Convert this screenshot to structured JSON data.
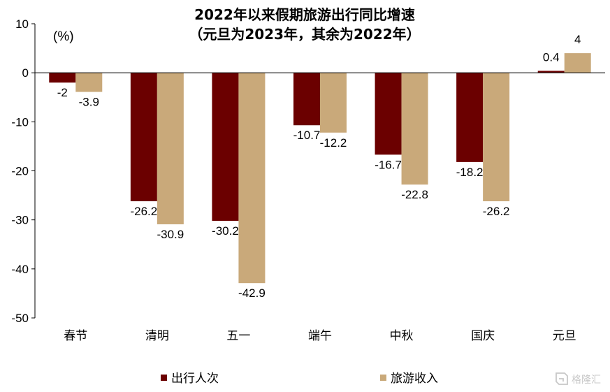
{
  "chart_data": {
    "type": "bar",
    "title": "2022年以来假期旅游出行同比增速",
    "subtitle": "（元旦为2023年，其余为2022年）",
    "unit_label": "(%)",
    "categories": [
      "春节",
      "清明",
      "五一",
      "端午",
      "中秋",
      "国庆",
      "元旦"
    ],
    "series": [
      {
        "name": "出行人次",
        "values": [
          -2,
          -26.2,
          -30.2,
          -10.7,
          -16.7,
          -18.2,
          0.4
        ],
        "labels": [
          "-2",
          "-26.2",
          "-30.2",
          "-10.7",
          "-16.7",
          "-18.2",
          "0.4"
        ],
        "color": "#6b0000"
      },
      {
        "name": "旅游收入",
        "values": [
          -3.9,
          -30.9,
          -42.9,
          -12.2,
          -22.8,
          -26.2,
          4
        ],
        "labels": [
          "-3.9",
          "-30.9",
          "-42.9",
          "-12.2",
          "-22.8",
          "-26.2",
          "4"
        ],
        "color": "#c9a97a"
      }
    ],
    "ylim": [
      -50,
      10
    ],
    "yticks": [
      10,
      0,
      -10,
      -20,
      -30,
      -40,
      -50
    ],
    "ytick_labels": [
      "10",
      "0",
      "-10",
      "-20",
      "-30",
      "-40",
      "-50"
    ],
    "ytick_colors": [
      "#000000",
      "#000000",
      "#e00000",
      "#e00000",
      "#e00000",
      "#e00000",
      "#e00000"
    ],
    "grid": false,
    "legend": "bottom"
  },
  "watermark": "格隆汇"
}
